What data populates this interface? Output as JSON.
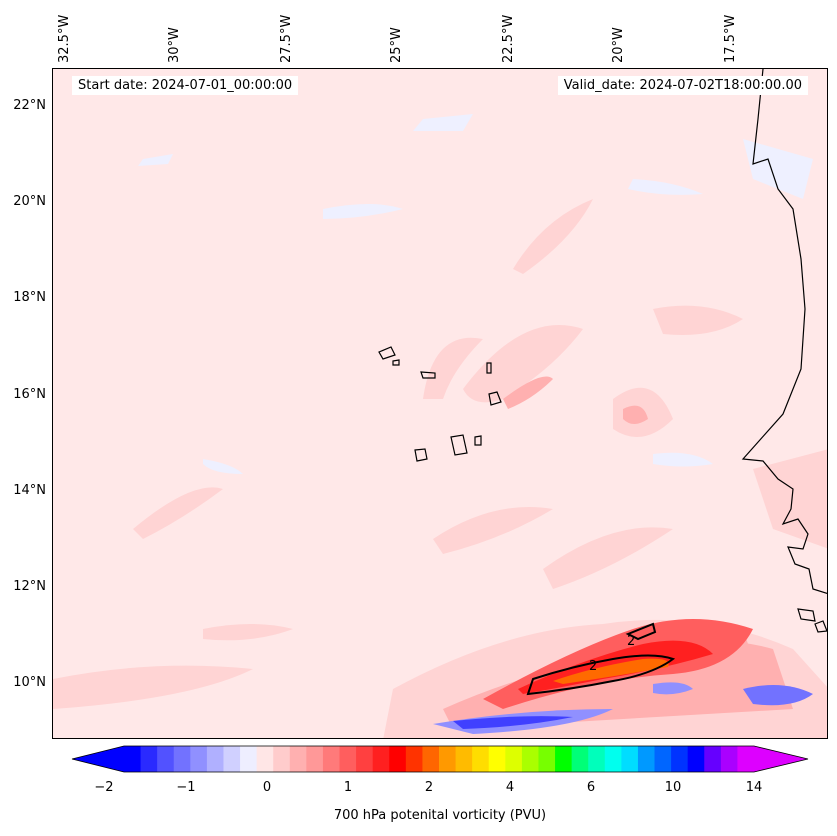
{
  "map": {
    "start_date": "Start date: 2024-07-01_00:00:00",
    "valid_date": "Valid_date: 2024-07-02T18:00:00.00",
    "longitude_labels": [
      "32.5°W",
      "30°W",
      "27.5°W",
      "25°W",
      "22.5°W",
      "20°W",
      "17.5°W"
    ],
    "latitude_labels": [
      "22°N",
      "20°N",
      "18°N",
      "16°N",
      "14°N",
      "12°N",
      "10°N"
    ],
    "contour_label": "2",
    "colors": {
      "background": "#ffe8e8",
      "light_pink": "#ffd4d4",
      "pink": "#ffb0b0",
      "red": "#ff3030",
      "deep_red": "#ff1010",
      "orange": "#ff6a00",
      "light_blue": "#eef0ff",
      "blue": "#4040ff",
      "coast": "#000000"
    }
  },
  "colorbar": {
    "label": "700 hPa potenital vorticity (PVU)",
    "ticks": [
      "−2",
      "−1",
      "0",
      "1",
      "2",
      "4",
      "6",
      "10",
      "14"
    ],
    "colors": [
      "#0000ff",
      "#2a2aff",
      "#5252ff",
      "#7272ff",
      "#9090ff",
      "#b0b0ff",
      "#d0d0ff",
      "#eeeeff",
      "#ffe6e6",
      "#ffcccc",
      "#ffb0b0",
      "#ff9898",
      "#ff7a7a",
      "#ff5e5e",
      "#ff4040",
      "#ff2020",
      "#ff0000",
      "#ff3300",
      "#ff6600",
      "#ff9900",
      "#ffbb00",
      "#ffdd00",
      "#ffff00",
      "#ddff00",
      "#aaff00",
      "#77ff00",
      "#00ff00",
      "#00ff77",
      "#00ffbb",
      "#00ffee",
      "#00ddff",
      "#0099ff",
      "#0066ff",
      "#0033ff",
      "#0000ff",
      "#6600ff",
      "#aa00ff",
      "#dd00ff"
    ]
  }
}
